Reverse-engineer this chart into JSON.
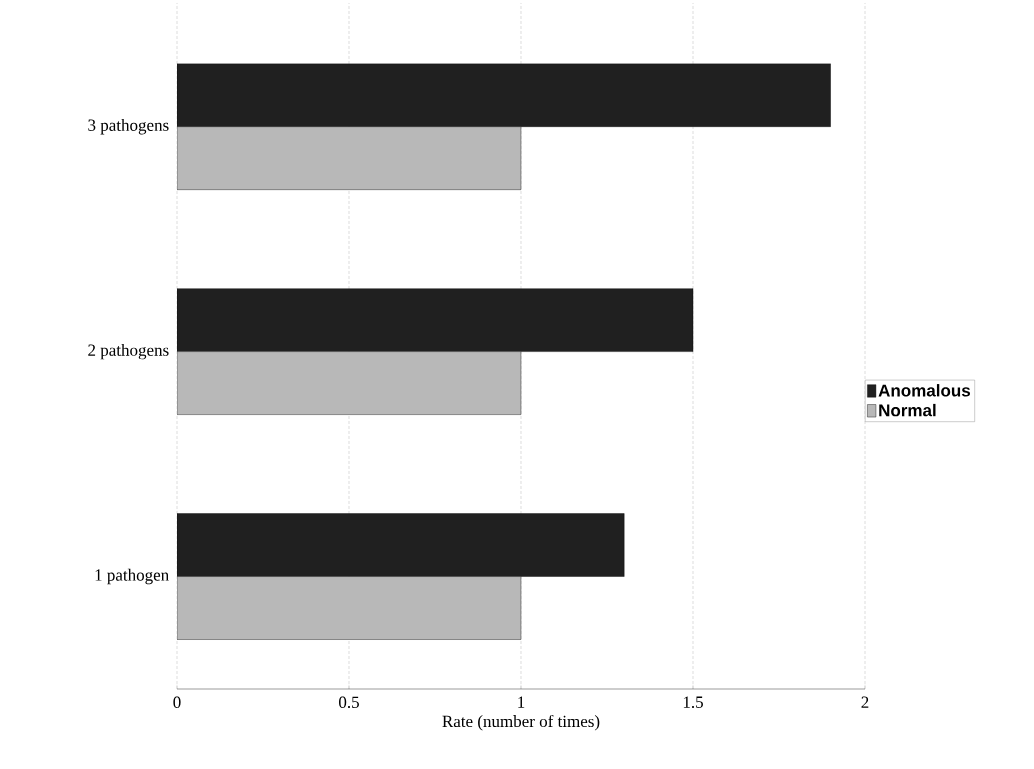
{
  "chart_data": {
    "type": "bar",
    "orientation": "horizontal",
    "xlabel": "Rate (number of times)",
    "categories": [
      "3 pathogens",
      "2 pathogens",
      "1 pathogen"
    ],
    "series": [
      {
        "name": "Anomalous",
        "color": "#202020",
        "values": [
          1.9,
          1.5,
          1.3
        ]
      },
      {
        "name": "Normal",
        "color": "#b8b8b8",
        "values": [
          1,
          1,
          1
        ]
      }
    ],
    "xlim": [
      0,
      2
    ],
    "xticks": [
      0,
      0.5,
      1,
      1.5,
      2
    ],
    "grid": "x",
    "legend": "right"
  }
}
